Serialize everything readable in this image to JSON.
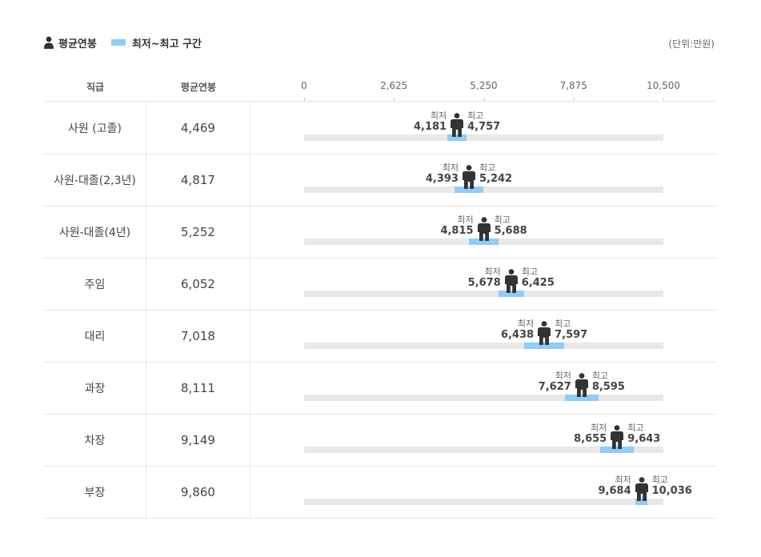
{
  "legend": {
    "average_label": "평균연봉",
    "range_label": "최저~최고 구간",
    "unit": "(단위:만원)"
  },
  "header": {
    "rank": "직급",
    "avg": "평균연봉"
  },
  "labels": {
    "min": "최저",
    "max": "최고"
  },
  "colors": {
    "range": "#8dcdf7",
    "track": "#e8e8e8",
    "person": "#333333"
  },
  "chart_data": {
    "type": "range",
    "xlim": [
      0,
      10500
    ],
    "ticks": [
      "0",
      "2,625",
      "5,250",
      "7,875",
      "10,500"
    ],
    "tick_values": [
      0,
      2625,
      5250,
      7875,
      10500
    ],
    "rows": [
      {
        "rank": "사원 (고졸)",
        "avg": 4469,
        "avg_label": "4,469",
        "min": 4181,
        "min_label": "4,181",
        "max": 4757,
        "max_label": "4,757"
      },
      {
        "rank": "사원-대졸(2,3년)",
        "avg": 4817,
        "avg_label": "4,817",
        "min": 4393,
        "min_label": "4,393",
        "max": 5242,
        "max_label": "5,242"
      },
      {
        "rank": "사원-대졸(4년)",
        "avg": 5252,
        "avg_label": "5,252",
        "min": 4815,
        "min_label": "4,815",
        "max": 5688,
        "max_label": "5,688"
      },
      {
        "rank": "주임",
        "avg": 6052,
        "avg_label": "6,052",
        "min": 5678,
        "min_label": "5,678",
        "max": 6425,
        "max_label": "6,425"
      },
      {
        "rank": "대리",
        "avg": 7018,
        "avg_label": "7,018",
        "min": 6438,
        "min_label": "6,438",
        "max": 7597,
        "max_label": "7,597"
      },
      {
        "rank": "과장",
        "avg": 8111,
        "avg_label": "8,111",
        "min": 7627,
        "min_label": "7,627",
        "max": 8595,
        "max_label": "8,595"
      },
      {
        "rank": "차장",
        "avg": 9149,
        "avg_label": "9,149",
        "min": 8655,
        "min_label": "8,655",
        "max": 9643,
        "max_label": "9,643"
      },
      {
        "rank": "부장",
        "avg": 9860,
        "avg_label": "9,860",
        "min": 9684,
        "min_label": "9,684",
        "max": 10036,
        "max_label": "10,036"
      }
    ]
  }
}
